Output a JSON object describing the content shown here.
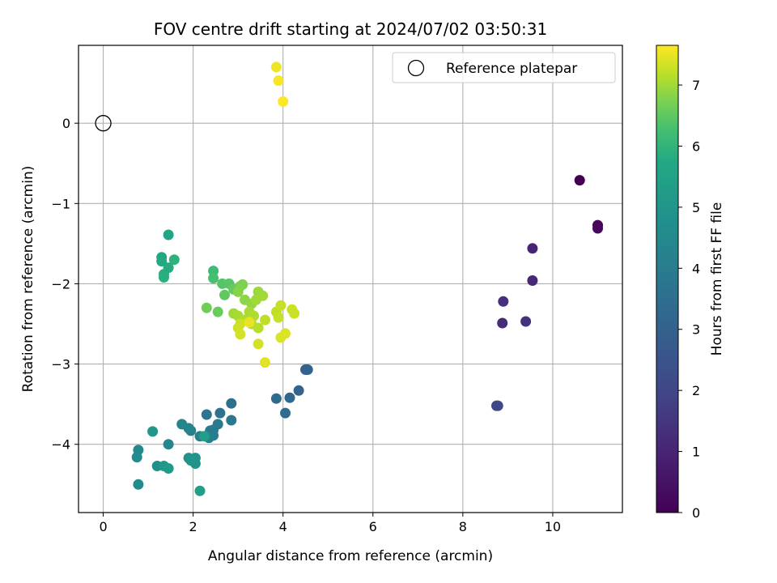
{
  "chart_data": {
    "type": "scatter",
    "title": "FOV centre drift starting at 2024/07/02 03:50:31",
    "xlabel": "Angular distance from reference (arcmin)",
    "ylabel": "Rotation from reference (arcmin)",
    "xlim": [
      -0.55,
      11.55
    ],
    "ylim": [
      -4.85,
      0.97
    ],
    "xticks": [
      0,
      2,
      4,
      6,
      8,
      10
    ],
    "yticks": [
      0,
      -1,
      -2,
      -3,
      -4
    ],
    "grid": true,
    "legend": {
      "position": "top-right",
      "label": "Reference platepar"
    },
    "reference_point": {
      "x": 0,
      "y": 0
    },
    "colorbar": {
      "label": "Hours from first FF file",
      "range": [
        0,
        7.65
      ],
      "ticks": [
        0,
        1,
        2,
        3,
        4,
        5,
        6,
        7
      ],
      "colormap": "viridis"
    },
    "points": [
      [
        10.6,
        -0.71,
        0.0
      ],
      [
        11.0,
        -1.27,
        0.1
      ],
      [
        11.0,
        -1.31,
        0.2
      ],
      [
        9.55,
        -1.56,
        1.0
      ],
      [
        9.55,
        -1.96,
        1.1
      ],
      [
        8.9,
        -2.22,
        1.3
      ],
      [
        8.88,
        -2.49,
        1.2
      ],
      [
        9.4,
        -2.47,
        1.4
      ],
      [
        8.75,
        -3.52,
        2.0
      ],
      [
        8.78,
        -3.52,
        2.1
      ],
      [
        4.5,
        -3.07,
        3.0
      ],
      [
        4.55,
        -3.07,
        3.05
      ],
      [
        4.35,
        -3.33,
        3.1
      ],
      [
        4.15,
        -3.42,
        3.2
      ],
      [
        3.85,
        -3.43,
        3.3
      ],
      [
        4.05,
        -3.61,
        3.4
      ],
      [
        2.85,
        -3.49,
        3.5
      ],
      [
        2.6,
        -3.61,
        3.6
      ],
      [
        2.3,
        -3.63,
        3.7
      ],
      [
        2.85,
        -3.7,
        3.8
      ],
      [
        2.55,
        -3.75,
        3.9
      ],
      [
        2.45,
        -3.82,
        3.95
      ],
      [
        2.38,
        -3.83,
        4.0
      ],
      [
        2.45,
        -3.89,
        4.05
      ],
      [
        2.15,
        -3.9,
        4.1
      ],
      [
        2.35,
        -3.92,
        4.15
      ],
      [
        1.95,
        -3.83,
        4.2
      ],
      [
        1.75,
        -3.75,
        4.3
      ],
      [
        1.9,
        -3.8,
        4.3
      ],
      [
        1.45,
        -4.0,
        4.4
      ],
      [
        0.78,
        -4.07,
        4.5
      ],
      [
        0.75,
        -4.16,
        4.6
      ],
      [
        0.78,
        -4.5,
        4.6
      ],
      [
        1.2,
        -4.27,
        4.7
      ],
      [
        1.9,
        -4.17,
        4.8
      ],
      [
        2.05,
        -4.17,
        4.85
      ],
      [
        2.05,
        -4.24,
        4.9
      ],
      [
        1.95,
        -4.2,
        4.95
      ],
      [
        1.1,
        -3.84,
        5.0
      ],
      [
        1.35,
        -4.27,
        5.1
      ],
      [
        1.45,
        -4.3,
        5.2
      ],
      [
        2.25,
        -3.9,
        5.3
      ],
      [
        2.15,
        -4.58,
        5.4
      ],
      [
        1.45,
        -1.39,
        5.6
      ],
      [
        1.3,
        -1.67,
        5.7
      ],
      [
        1.3,
        -1.72,
        5.75
      ],
      [
        1.45,
        -1.8,
        5.8
      ],
      [
        1.35,
        -1.88,
        5.85
      ],
      [
        1.35,
        -1.92,
        5.9
      ],
      [
        1.58,
        -1.7,
        5.95
      ],
      [
        2.45,
        -1.84,
        6.2
      ],
      [
        2.45,
        -1.93,
        6.3
      ],
      [
        2.65,
        -2.0,
        6.4
      ],
      [
        2.8,
        -2.0,
        6.45
      ],
      [
        2.7,
        -2.14,
        6.5
      ],
      [
        2.9,
        -2.07,
        6.55
      ],
      [
        2.55,
        -2.35,
        6.6
      ],
      [
        2.3,
        -2.3,
        6.65
      ],
      [
        3.05,
        -2.03,
        6.7
      ],
      [
        3.1,
        -2.01,
        6.75
      ],
      [
        3.0,
        -2.1,
        6.8
      ],
      [
        3.15,
        -2.2,
        6.85
      ],
      [
        3.3,
        -2.25,
        6.9
      ],
      [
        3.45,
        -2.1,
        6.95
      ],
      [
        3.4,
        -2.2,
        7.0
      ],
      [
        3.55,
        -2.15,
        7.0
      ],
      [
        2.9,
        -2.37,
        7.0
      ],
      [
        3.0,
        -2.4,
        7.05
      ],
      [
        3.25,
        -2.35,
        7.05
      ],
      [
        3.35,
        -2.4,
        7.1
      ],
      [
        3.15,
        -2.45,
        7.1
      ],
      [
        3.3,
        -2.5,
        7.15
      ],
      [
        3.45,
        -2.55,
        7.15
      ],
      [
        3.6,
        -2.45,
        7.2
      ],
      [
        3.85,
        -2.35,
        7.2
      ],
      [
        3.95,
        -2.27,
        7.25
      ],
      [
        3.9,
        -2.42,
        7.25
      ],
      [
        4.2,
        -2.32,
        7.3
      ],
      [
        4.25,
        -2.37,
        7.3
      ],
      [
        3.05,
        -2.5,
        7.3
      ],
      [
        3.0,
        -2.55,
        7.32
      ],
      [
        3.05,
        -2.63,
        7.35
      ],
      [
        3.45,
        -2.75,
        7.35
      ],
      [
        3.95,
        -2.67,
        7.4
      ],
      [
        4.05,
        -2.62,
        7.4
      ],
      [
        3.6,
        -2.98,
        7.45
      ],
      [
        3.25,
        -2.48,
        7.5
      ],
      [
        3.85,
        0.7,
        7.55
      ],
      [
        3.9,
        0.53,
        7.6
      ],
      [
        4.0,
        0.27,
        7.65
      ]
    ]
  }
}
